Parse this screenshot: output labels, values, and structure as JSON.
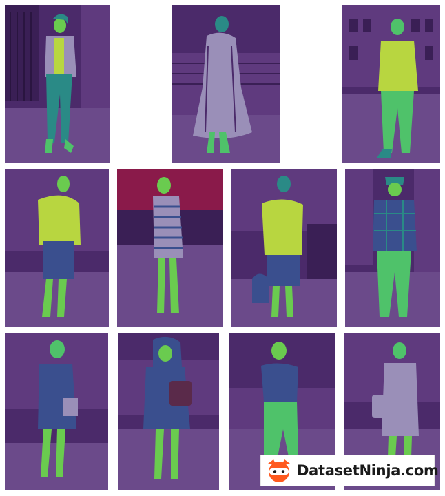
{
  "palette": {
    "background": "#4b2a6a",
    "background_light": "#5f3a7e",
    "floor": "#6b4a8a",
    "accent_red": "#8a1a4a",
    "mask_lime": "#b8d640",
    "mask_green": "#4fc26a",
    "mask_teal": "#2a8a86",
    "mask_blue": "#3a4f8e",
    "mask_gray": "#9a8fb8",
    "skin_green": "#6acb4f"
  },
  "tiles": [
    {
      "name": "row1-left",
      "figure": "jacket-jeans"
    },
    {
      "name": "row1-center",
      "figure": "long-coat"
    },
    {
      "name": "row1-right",
      "figure": "man-sweater"
    },
    {
      "name": "row2-1",
      "figure": "sweater-skirt"
    },
    {
      "name": "row2-2",
      "figure": "striped-dress"
    },
    {
      "name": "row2-3",
      "figure": "yellow-sweater"
    },
    {
      "name": "row2-4",
      "figure": "plaid-shirt"
    },
    {
      "name": "row3-1",
      "figure": "blue-dress"
    },
    {
      "name": "row3-2",
      "figure": "hooded-coat"
    },
    {
      "name": "row3-3",
      "figure": "teal-pants"
    },
    {
      "name": "row3-4",
      "figure": "light-dress"
    }
  ],
  "brand": {
    "text": "DatasetNinja.com",
    "logo_icon": "ninja-logo-icon"
  }
}
